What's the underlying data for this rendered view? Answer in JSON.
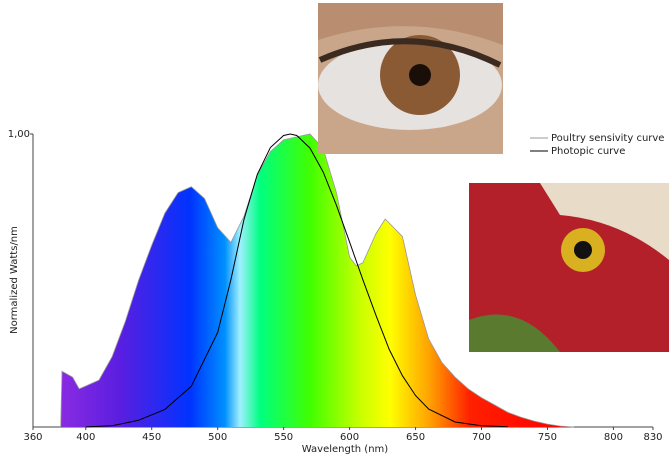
{
  "chart_data": {
    "type": "line",
    "xlabel": "Wavelength (nm)",
    "ylabel": "Normalized Watts/nm",
    "xlim": [
      360,
      830
    ],
    "ylim": [
      0,
      1
    ],
    "xticks": [
      360,
      400,
      450,
      500,
      550,
      600,
      650,
      700,
      750,
      800,
      830
    ],
    "yticks": [
      {
        "value": 1,
        "label": "1,00"
      }
    ],
    "series": [
      {
        "name": "Poultry sensivity curve",
        "color": "#999999",
        "fill": "spectrum",
        "x": [
          381,
          382,
          390,
          395,
          400,
          410,
          420,
          430,
          440,
          450,
          460,
          470,
          480,
          490,
          500,
          510,
          520,
          530,
          540,
          550,
          560,
          570,
          580,
          590,
          600,
          605,
          610,
          620,
          627,
          640,
          650,
          660,
          670,
          680,
          690,
          700,
          710,
          720,
          730,
          740,
          750,
          760,
          770
        ],
        "values": [
          0,
          0.19,
          0.17,
          0.13,
          0.14,
          0.16,
          0.24,
          0.36,
          0.5,
          0.62,
          0.73,
          0.8,
          0.82,
          0.78,
          0.68,
          0.63,
          0.72,
          0.86,
          0.94,
          0.98,
          0.99,
          1.0,
          0.95,
          0.8,
          0.58,
          0.55,
          0.56,
          0.66,
          0.71,
          0.65,
          0.45,
          0.3,
          0.22,
          0.17,
          0.13,
          0.1,
          0.075,
          0.05,
          0.033,
          0.02,
          0.01,
          0.003,
          0
        ]
      },
      {
        "name": "Photopic curve",
        "color": "#000000",
        "x": [
          400,
          420,
          440,
          460,
          480,
          500,
          510,
          520,
          530,
          540,
          550,
          555,
          560,
          570,
          580,
          590,
          600,
          610,
          620,
          630,
          640,
          650,
          660,
          680,
          700,
          720
        ],
        "values": [
          0.0004,
          0.004,
          0.023,
          0.06,
          0.139,
          0.323,
          0.503,
          0.71,
          0.862,
          0.954,
          0.995,
          1,
          0.995,
          0.952,
          0.87,
          0.757,
          0.631,
          0.503,
          0.381,
          0.265,
          0.175,
          0.107,
          0.061,
          0.017,
          0.004,
          0.001
        ]
      }
    ],
    "legend": "upper right"
  }
}
